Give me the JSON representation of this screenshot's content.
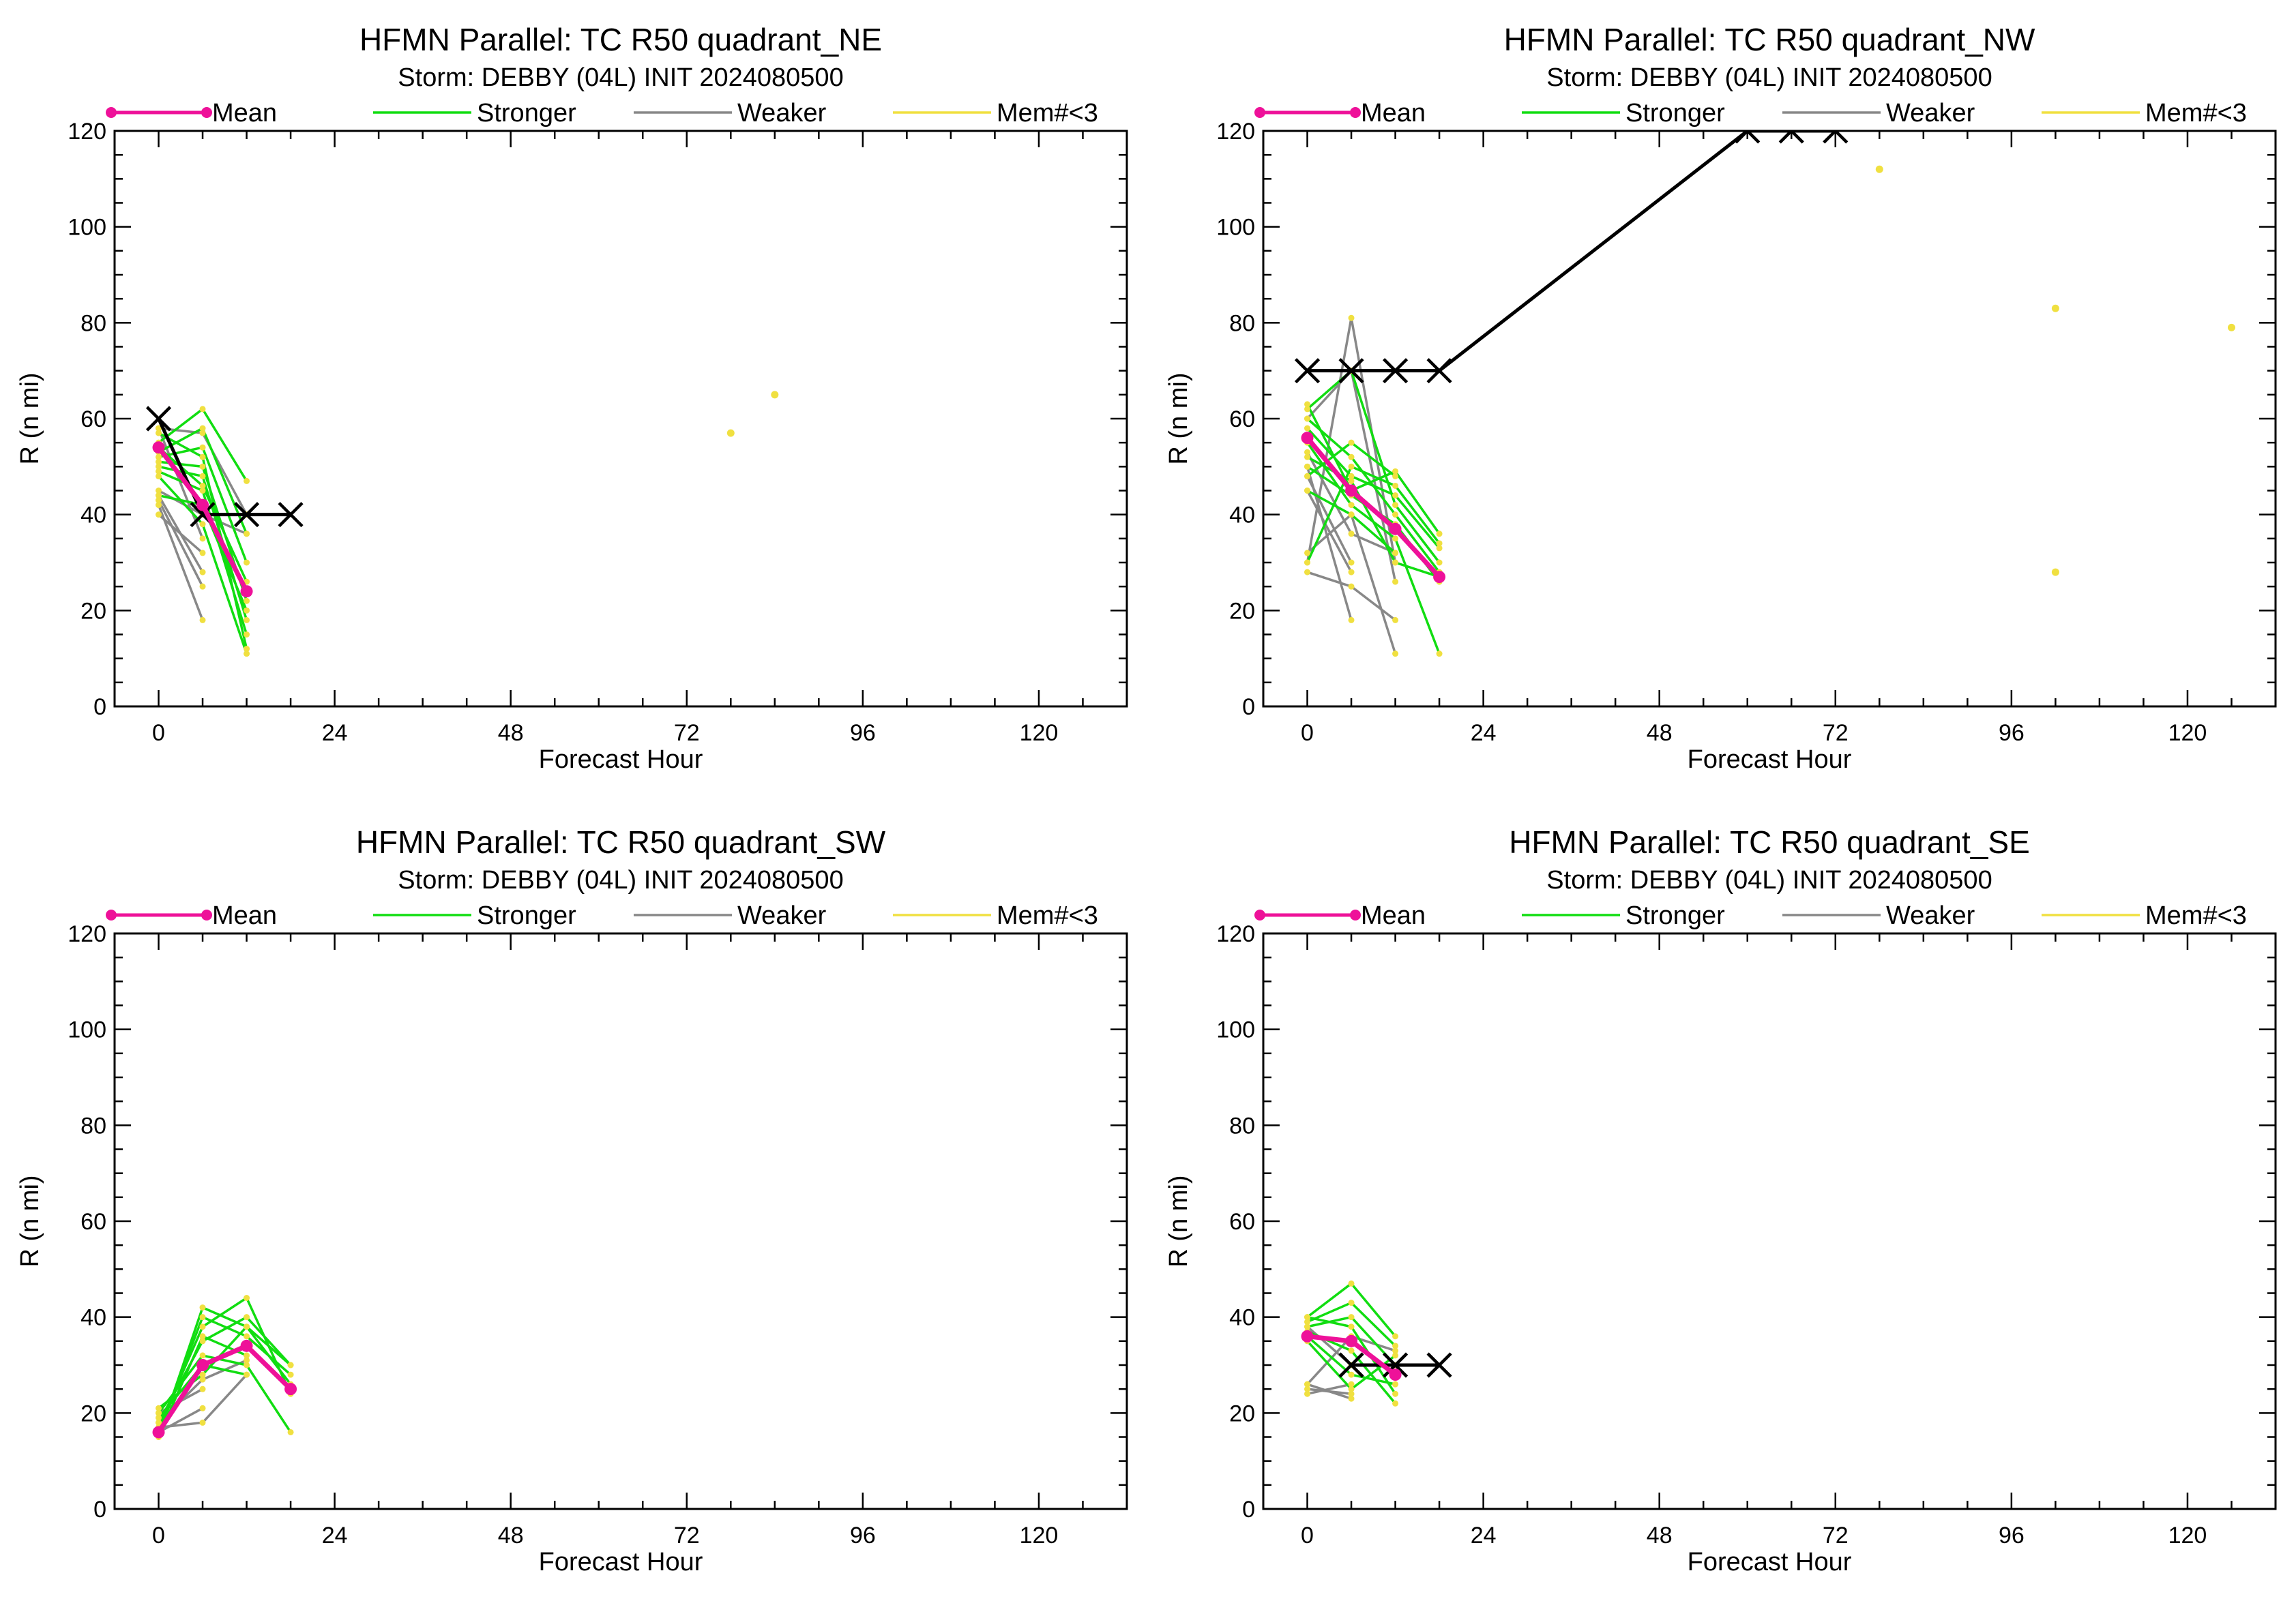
{
  "colors": {
    "mean": "#ee1199",
    "stronger": "#11dd11",
    "weaker": "#888888",
    "few": "#f0e040",
    "best_track": "#000000",
    "frame": "#000000"
  },
  "legend": {
    "mean": "Mean",
    "stronger": "Stronger",
    "weaker": "Weaker",
    "few": "Mem#<3"
  },
  "chart_data": [
    {
      "type": "line",
      "title": "HFMN Parallel: TC  R50 quadrant_NE",
      "subtitle": "Storm: DEBBY (04L) INIT 2024080500",
      "xlabel": "Forecast Hour",
      "ylabel": "R (n mi)",
      "xlim": [
        -6,
        132
      ],
      "ylim": [
        0,
        120
      ],
      "xticks": [
        0,
        24,
        48,
        72,
        96,
        120
      ],
      "yticks": [
        0,
        20,
        40,
        60,
        80,
        100,
        120
      ],
      "legend_position": "top",
      "mean": {
        "x": [
          0,
          6,
          12
        ],
        "y": [
          54,
          42,
          24
        ]
      },
      "best_track": {
        "x": [
          0,
          6,
          12,
          18
        ],
        "y": [
          60,
          40,
          40,
          40
        ]
      },
      "stronger": [
        [
          [
            0,
            6,
            12
          ],
          [
            55,
            62,
            47
          ]
        ],
        [
          [
            0,
            6,
            12
          ],
          [
            53,
            58,
            36
          ]
        ],
        [
          [
            0,
            6,
            12
          ],
          [
            52,
            54,
            30
          ]
        ],
        [
          [
            0,
            6,
            12
          ],
          [
            51,
            50,
            22
          ]
        ],
        [
          [
            0,
            6,
            12
          ],
          [
            50,
            48,
            18
          ]
        ],
        [
          [
            0,
            6,
            12
          ],
          [
            49,
            45,
            15
          ]
        ],
        [
          [
            0,
            6,
            12
          ],
          [
            57,
            52,
            12
          ]
        ],
        [
          [
            0,
            6,
            12
          ],
          [
            44,
            42,
            20
          ]
        ],
        [
          [
            0,
            6,
            12
          ],
          [
            48,
            38,
            11
          ]
        ],
        [
          [
            0,
            6,
            12
          ],
          [
            54,
            46,
            26
          ]
        ]
      ],
      "weaker": [
        [
          [
            0,
            6,
            12
          ],
          [
            58,
            57,
            40
          ]
        ],
        [
          [
            0,
            6,
            12
          ],
          [
            45,
            40,
            36
          ]
        ],
        [
          [
            0,
            6
          ],
          [
            44,
            28
          ]
        ],
        [
          [
            0,
            6
          ],
          [
            42,
            18
          ]
        ],
        [
          [
            0,
            6
          ],
          [
            40,
            32
          ]
        ],
        [
          [
            0,
            6
          ],
          [
            43,
            25
          ]
        ],
        [
          [
            0,
            6
          ],
          [
            58,
            35
          ]
        ]
      ],
      "few_points": [
        [
          78,
          57
        ],
        [
          84,
          65
        ]
      ]
    },
    {
      "type": "line",
      "title": "HFMN Parallel: TC  R50 quadrant_NW",
      "subtitle": "Storm: DEBBY (04L) INIT 2024080500",
      "xlabel": "Forecast Hour",
      "ylabel": "R (n mi)",
      "xlim": [
        -6,
        132
      ],
      "ylim": [
        0,
        120
      ],
      "xticks": [
        0,
        24,
        48,
        72,
        96,
        120
      ],
      "yticks": [
        0,
        20,
        40,
        60,
        80,
        100,
        120
      ],
      "legend_position": "top",
      "mean": {
        "x": [
          0,
          6,
          12,
          18
        ],
        "y": [
          56,
          45,
          37,
          27
        ]
      },
      "best_track": {
        "x": [
          0,
          6,
          12,
          18,
          60,
          66,
          72
        ],
        "y": [
          70,
          70,
          70,
          70,
          120,
          120,
          120
        ]
      },
      "stronger": [
        [
          [
            0,
            6,
            12,
            18
          ],
          [
            63,
            45,
            49,
            36
          ]
        ],
        [
          [
            0,
            6,
            12,
            18
          ],
          [
            62,
            70,
            42,
            30
          ]
        ],
        [
          [
            0,
            6,
            12,
            18
          ],
          [
            60,
            52,
            40,
            28
          ]
        ],
        [
          [
            0,
            6,
            12,
            18
          ],
          [
            58,
            48,
            44,
            33
          ]
        ],
        [
          [
            0,
            6,
            12,
            18
          ],
          [
            55,
            42,
            35,
            11
          ]
        ],
        [
          [
            0,
            6,
            12,
            18
          ],
          [
            52,
            47,
            30,
            27
          ]
        ],
        [
          [
            0,
            6,
            12,
            18
          ],
          [
            50,
            44,
            38,
            26
          ]
        ],
        [
          [
            0,
            6,
            12
          ],
          [
            45,
            40,
            32
          ]
        ],
        [
          [
            0,
            6,
            12,
            18
          ],
          [
            30,
            50,
            46,
            34
          ]
        ],
        [
          [
            0,
            6,
            12
          ],
          [
            48,
            55,
            48
          ]
        ]
      ],
      "weaker": [
        [
          [
            0,
            6,
            12
          ],
          [
            30,
            81,
            30
          ]
        ],
        [
          [
            0,
            6,
            12
          ],
          [
            32,
            40,
            11
          ]
        ],
        [
          [
            0,
            6,
            12
          ],
          [
            28,
            25,
            18
          ]
        ],
        [
          [
            0,
            6
          ],
          [
            50,
            18
          ]
        ],
        [
          [
            0,
            6
          ],
          [
            45,
            28
          ]
        ],
        [
          [
            0,
            6,
            12
          ],
          [
            60,
            70,
            26
          ]
        ],
        [
          [
            0,
            6,
            12
          ],
          [
            53,
            36,
            32
          ]
        ],
        [
          [
            0,
            6
          ],
          [
            48,
            30
          ]
        ]
      ],
      "few_points": [
        [
          78,
          112
        ],
        [
          102,
          83
        ],
        [
          102,
          28
        ],
        [
          126,
          79
        ]
      ]
    },
    {
      "type": "line",
      "title": "HFMN Parallel: TC  R50 quadrant_SW",
      "subtitle": "Storm: DEBBY (04L) INIT 2024080500",
      "xlabel": "Forecast Hour",
      "ylabel": "R (n mi)",
      "xlim": [
        -6,
        132
      ],
      "ylim": [
        0,
        120
      ],
      "xticks": [
        0,
        24,
        48,
        72,
        96,
        120
      ],
      "yticks": [
        0,
        20,
        40,
        60,
        80,
        100,
        120
      ],
      "legend_position": "top",
      "mean": {
        "x": [
          0,
          6,
          12,
          18
        ],
        "y": [
          16,
          30,
          34,
          25
        ]
      },
      "best_track": {
        "x": [],
        "y": []
      },
      "stronger": [
        [
          [
            0,
            6,
            12,
            18
          ],
          [
            15,
            42,
            38,
            30
          ]
        ],
        [
          [
            0,
            6,
            12,
            18
          ],
          [
            16,
            40,
            36,
            28
          ]
        ],
        [
          [
            0,
            6,
            12,
            18
          ],
          [
            17,
            38,
            44,
            24
          ]
        ],
        [
          [
            0,
            6,
            12,
            18
          ],
          [
            18,
            35,
            40,
            30
          ]
        ],
        [
          [
            0,
            6,
            12,
            18
          ],
          [
            20,
            32,
            30,
            16
          ]
        ],
        [
          [
            0,
            6,
            12,
            18
          ],
          [
            21,
            28,
            38,
            26
          ]
        ],
        [
          [
            0,
            6,
            12
          ],
          [
            15,
            36,
            32
          ]
        ],
        [
          [
            0,
            6,
            12
          ],
          [
            19,
            30,
            28
          ]
        ]
      ],
      "weaker": [
        [
          [
            0,
            6,
            12
          ],
          [
            17,
            18,
            28
          ]
        ],
        [
          [
            0,
            6
          ],
          [
            20,
            25
          ]
        ],
        [
          [
            0,
            6
          ],
          [
            16,
            21
          ]
        ],
        [
          [
            0,
            6,
            12
          ],
          [
            18,
            27,
            31
          ]
        ]
      ],
      "few_points": []
    },
    {
      "type": "line",
      "title": "HFMN Parallel: TC  R50 quadrant_SE",
      "subtitle": "Storm: DEBBY (04L) INIT 2024080500",
      "xlabel": "Forecast Hour",
      "ylabel": "R (n mi)",
      "xlim": [
        -6,
        132
      ],
      "ylim": [
        0,
        120
      ],
      "xticks": [
        0,
        24,
        48,
        72,
        96,
        120
      ],
      "yticks": [
        0,
        20,
        40,
        60,
        80,
        100,
        120
      ],
      "legend_position": "top",
      "mean": {
        "x": [
          0,
          6,
          12
        ],
        "y": [
          36,
          35,
          28
        ]
      },
      "best_track": {
        "x": [
          6,
          12,
          18
        ],
        "y": [
          30,
          30,
          30
        ]
      },
      "stronger": [
        [
          [
            0,
            6,
            12
          ],
          [
            40,
            47,
            36
          ]
        ],
        [
          [
            0,
            6,
            12
          ],
          [
            39,
            43,
            34
          ]
        ],
        [
          [
            0,
            6,
            12
          ],
          [
            38,
            40,
            30
          ]
        ],
        [
          [
            0,
            6,
            12
          ],
          [
            37,
            33,
            22
          ]
        ],
        [
          [
            0,
            6,
            12
          ],
          [
            36,
            28,
            26
          ]
        ],
        [
          [
            0,
            6,
            12
          ],
          [
            35,
            25,
            32
          ]
        ],
        [
          [
            0,
            6,
            12
          ],
          [
            40,
            38,
            24
          ]
        ]
      ],
      "weaker": [
        [
          [
            0,
            6,
            12
          ],
          [
            26,
            36,
            33
          ]
        ],
        [
          [
            0,
            6
          ],
          [
            25,
            24
          ]
        ],
        [
          [
            0,
            6
          ],
          [
            24,
            26
          ]
        ],
        [
          [
            0,
            6
          ],
          [
            38,
            30
          ]
        ],
        [
          [
            0,
            6
          ],
          [
            26,
            23
          ]
        ]
      ],
      "few_points": []
    }
  ]
}
